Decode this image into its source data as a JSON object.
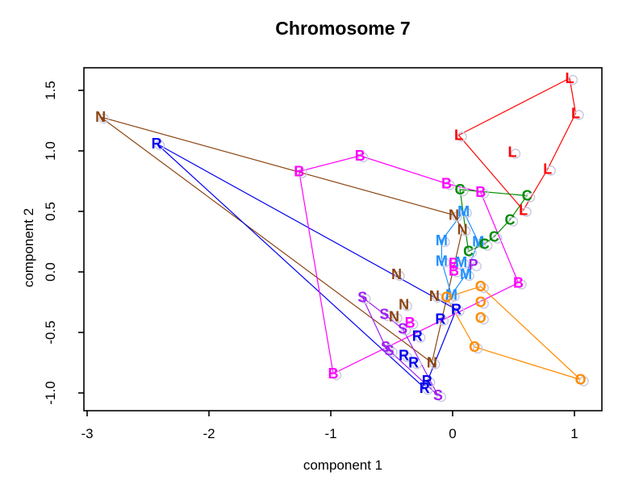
{
  "title": "Chromosome 7",
  "axes": {
    "xlabel": "component 1",
    "ylabel": "component 2",
    "x_tick_labels": [
      "-3",
      "-2",
      "-1",
      "0",
      "1"
    ],
    "x_tick_values": [
      -3,
      -2,
      -1,
      0,
      1
    ],
    "y_tick_labels": [
      "-1.0",
      "-0.5",
      "0.0",
      "0.5",
      "1.0",
      "1.5"
    ],
    "y_tick_values": [
      -1.0,
      -0.5,
      0.0,
      0.5,
      1.0,
      1.5
    ]
  },
  "chart_data": {
    "type": "scatter",
    "title": "Chromosome 7",
    "xlabel": "component 1",
    "ylabel": "component 2",
    "xlim": [
      -3.03,
      1.23
    ],
    "ylim": [
      -1.15,
      1.68
    ],
    "grid": false,
    "legend": "none",
    "point_marker": "open-circle",
    "point_marker_color": "#C9C9E0",
    "box_color": "#000000",
    "background": "#FFFFFF",
    "series": [
      {
        "letter": "L",
        "color": "#FF0000",
        "points": [
          [
            0.96,
            1.6
          ],
          [
            1.01,
            1.31
          ],
          [
            0.05,
            1.13
          ],
          [
            0.49,
            0.99
          ],
          [
            0.78,
            0.85
          ],
          [
            0.58,
            0.51
          ]
        ],
        "hull": [
          0,
          1,
          4,
          5,
          2
        ]
      },
      {
        "letter": "N",
        "color": "#8B4513",
        "points": [
          [
            -2.89,
            1.28
          ],
          [
            0.01,
            0.47
          ],
          [
            0.08,
            0.35
          ],
          [
            -0.46,
            -0.02
          ],
          [
            -0.15,
            -0.2
          ],
          [
            -0.4,
            -0.27
          ],
          [
            -0.48,
            -0.37
          ],
          [
            -0.17,
            -0.75
          ]
        ],
        "hull": [
          0,
          1,
          2,
          7
        ]
      },
      {
        "letter": "R",
        "color": "#0000EE",
        "points": [
          [
            -2.43,
            1.06
          ],
          [
            0.03,
            -0.31
          ],
          [
            -0.1,
            -0.39
          ],
          [
            -0.29,
            -0.53
          ],
          [
            -0.4,
            -0.69
          ],
          [
            -0.32,
            -0.75
          ],
          [
            -0.21,
            -0.9
          ],
          [
            -0.23,
            -0.96
          ]
        ],
        "hull": [
          0,
          1,
          7
        ]
      },
      {
        "letter": "B",
        "color": "#FF00FF",
        "points": [
          [
            -1.26,
            0.83
          ],
          [
            -0.76,
            0.96
          ],
          [
            -0.05,
            0.73
          ],
          [
            0.23,
            0.66
          ],
          [
            0.01,
            0.07
          ],
          [
            0.01,
            0.01
          ],
          [
            0.54,
            -0.09
          ],
          [
            -0.35,
            -0.42
          ],
          [
            -0.98,
            -0.84
          ]
        ],
        "hull": [
          0,
          1,
          2,
          3,
          6,
          8
        ]
      },
      {
        "letter": "M",
        "color": "#1E90FF",
        "points": [
          [
            0.09,
            0.5
          ],
          [
            -0.09,
            0.26
          ],
          [
            0.21,
            0.25
          ],
          [
            -0.09,
            0.09
          ],
          [
            0.07,
            0.08
          ],
          [
            0.11,
            -0.02
          ],
          [
            -0.01,
            -0.19
          ]
        ],
        "hull": [
          0,
          2,
          5,
          6,
          3,
          1
        ]
      },
      {
        "letter": "C",
        "color": "#008B00",
        "points": [
          [
            0.06,
            0.68
          ],
          [
            0.61,
            0.63
          ],
          [
            0.47,
            0.43
          ],
          [
            0.34,
            0.29
          ],
          [
            0.26,
            0.23
          ],
          [
            0.13,
            0.17
          ]
        ],
        "hull": [
          0,
          1,
          2,
          3,
          4,
          5
        ]
      },
      {
        "letter": "S",
        "color": "#A020F0",
        "points": [
          [
            -0.74,
            -0.21
          ],
          [
            -0.56,
            -0.35
          ],
          [
            -0.41,
            -0.47
          ],
          [
            -0.55,
            -0.62
          ],
          [
            -0.52,
            -0.65
          ],
          [
            -0.12,
            -1.02
          ]
        ],
        "hull": [
          0,
          1,
          2,
          5,
          4,
          3
        ]
      },
      {
        "letter": "O",
        "color": "#FF8C00",
        "points": [
          [
            -0.05,
            -0.21
          ],
          [
            0.23,
            -0.12
          ],
          [
            0.23,
            -0.25
          ],
          [
            0.23,
            -0.38
          ],
          [
            0.18,
            -0.62
          ],
          [
            1.05,
            -0.89
          ]
        ],
        "hull": [
          0,
          1,
          5,
          4
        ]
      },
      {
        "letter": "P",
        "color": "#A020F0",
        "points": [
          [
            0.17,
            0.06
          ]
        ],
        "hull": []
      }
    ]
  }
}
